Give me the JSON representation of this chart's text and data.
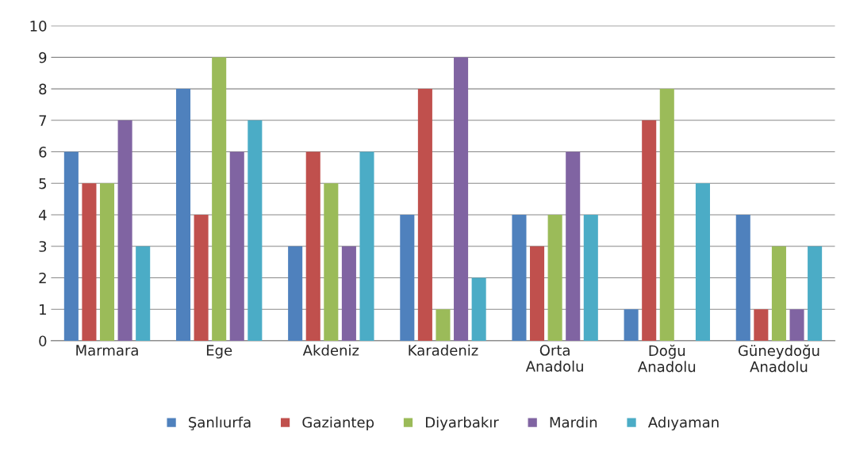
{
  "chart_data": {
    "type": "bar",
    "categories": [
      "Marmara",
      "Ege",
      "Akdeniz",
      "Karadeniz",
      "Orta\nAnadolu",
      "Doğu\nAnadolu",
      "Güneydoğu\nAnadolu"
    ],
    "series": [
      {
        "name": "Şanlıurfa",
        "color": "#4f81bd",
        "values": [
          6,
          8,
          3,
          4,
          4,
          1,
          4
        ]
      },
      {
        "name": "Gaziantep",
        "color": "#c0504d",
        "values": [
          5,
          4,
          6,
          8,
          3,
          7,
          1
        ]
      },
      {
        "name": "Diyarbakır",
        "color": "#9bbb59",
        "values": [
          5,
          9,
          5,
          1,
          4,
          8,
          3
        ]
      },
      {
        "name": "Mardin",
        "color": "#8064a2",
        "values": [
          7,
          6,
          3,
          9,
          6,
          null,
          1
        ]
      },
      {
        "name": "Adıyaman",
        "color": "#4bacc6",
        "values": [
          3,
          7,
          6,
          2,
          4,
          5,
          3
        ]
      }
    ],
    "ylim": [
      0,
      10
    ],
    "yticks": [
      0,
      1,
      2,
      3,
      4,
      5,
      6,
      7,
      8,
      9,
      10
    ],
    "grid": "y",
    "legend": "bottom"
  }
}
